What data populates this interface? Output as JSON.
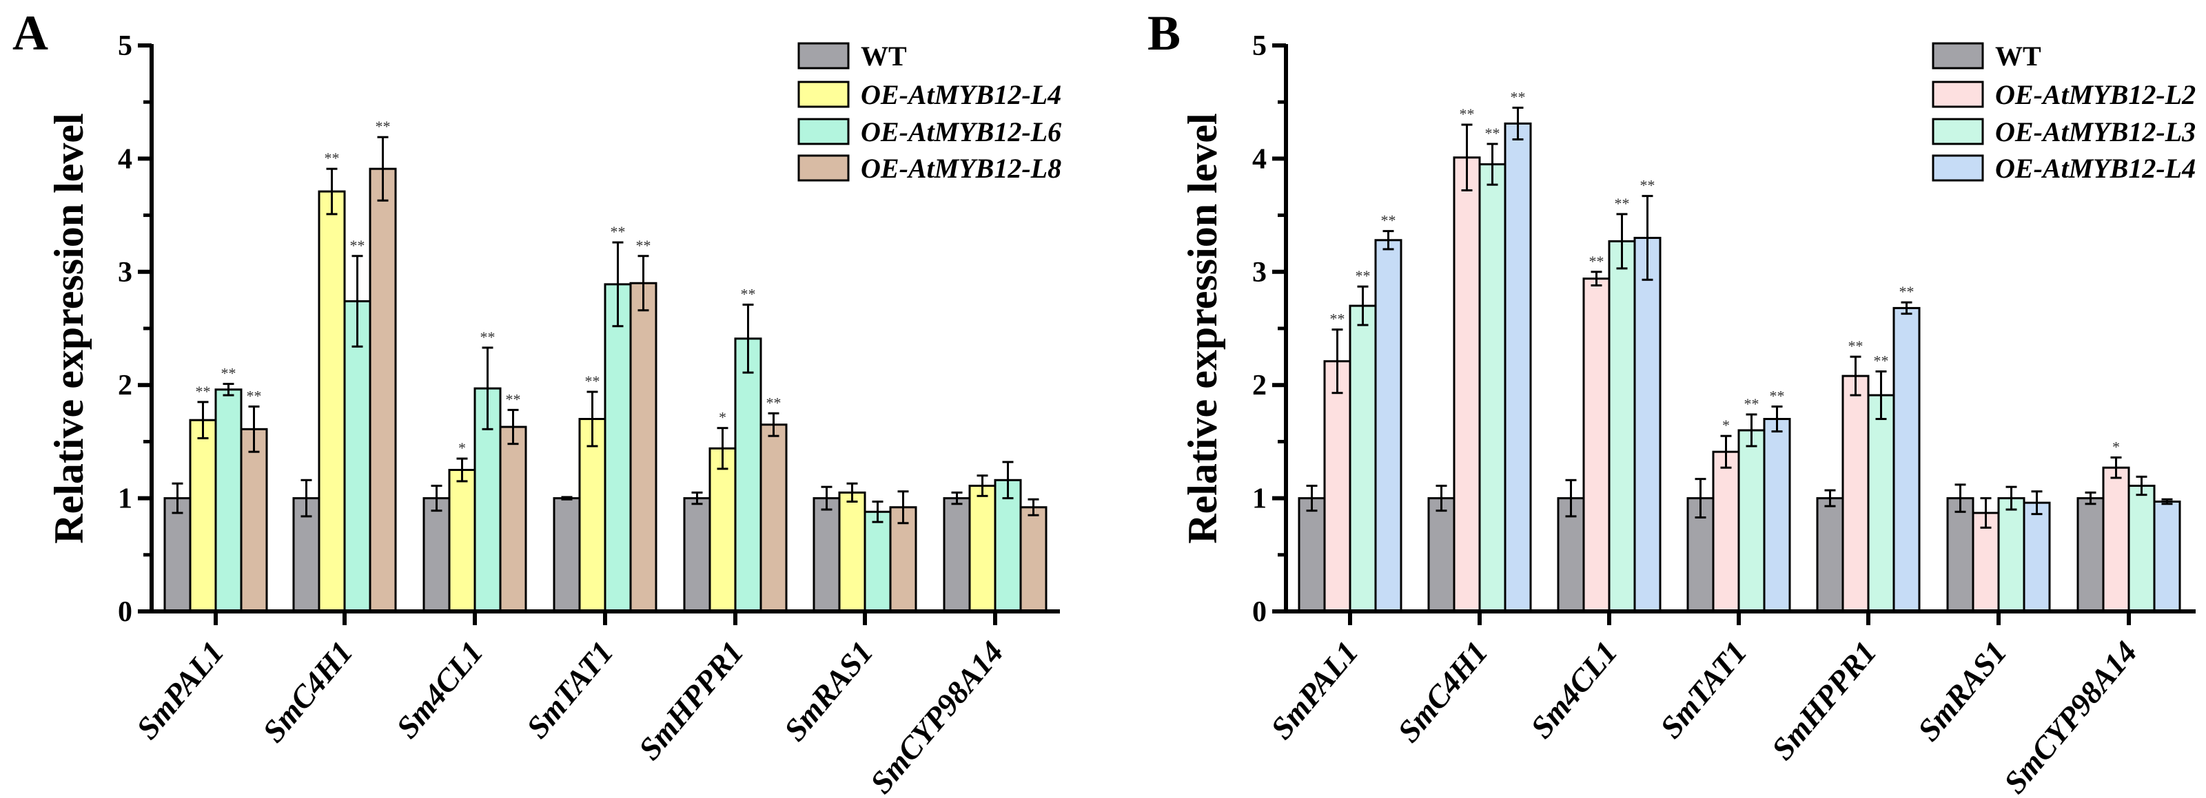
{
  "chart_data": [
    {
      "panel_label": "A",
      "type": "bar",
      "ylabel": "Relative expression level",
      "ylim": [
        0,
        5
      ],
      "yticks": [
        "0",
        "1",
        "2",
        "3",
        "4",
        "5"
      ],
      "legend_position": "top-right",
      "categories": [
        "SmPAL1",
        "SmC4H1",
        "Sm4CL1",
        "SmTAT1",
        "SmHPPR1",
        "SmRAS1",
        "SmCYP98A14"
      ],
      "series": [
        {
          "name": "WT",
          "color": "#a3a3a8",
          "values": [
            1.0,
            1.0,
            1.0,
            1.0,
            1.0,
            1.0,
            1.0
          ],
          "errors": [
            0.13,
            0.16,
            0.11,
            0.01,
            0.05,
            0.1,
            0.05
          ],
          "sig": [
            "",
            "",
            "",
            "",
            "",
            "",
            ""
          ]
        },
        {
          "name": "OE-AtMYB12-L4",
          "color": "#ffff99",
          "values": [
            1.69,
            3.71,
            1.25,
            1.7,
            1.44,
            1.05,
            1.11
          ],
          "errors": [
            0.16,
            0.2,
            0.1,
            0.24,
            0.18,
            0.08,
            0.09
          ],
          "sig": [
            "**",
            "**",
            "*",
            "**",
            "*",
            "",
            ""
          ]
        },
        {
          "name": "OE-AtMYB12-L6",
          "color": "#b3f5de",
          "values": [
            1.96,
            2.74,
            1.97,
            2.89,
            2.41,
            0.88,
            1.16
          ],
          "errors": [
            0.05,
            0.4,
            0.36,
            0.37,
            0.3,
            0.09,
            0.16
          ],
          "sig": [
            "**",
            "**",
            "**",
            "**",
            "**",
            "",
            ""
          ]
        },
        {
          "name": "OE-AtMYB12-L8",
          "color": "#d8bba4",
          "values": [
            1.61,
            3.91,
            1.63,
            2.9,
            1.65,
            0.92,
            0.92
          ],
          "errors": [
            0.2,
            0.28,
            0.15,
            0.24,
            0.1,
            0.14,
            0.07
          ],
          "sig": [
            "**",
            "**",
            "**",
            "**",
            "**",
            "",
            ""
          ]
        }
      ]
    },
    {
      "panel_label": "B",
      "type": "bar",
      "ylabel": "Relative expression level",
      "ylim": [
        0,
        5
      ],
      "yticks": [
        "0",
        "1",
        "2",
        "3",
        "4",
        "5"
      ],
      "legend_position": "top-right",
      "categories": [
        "SmPAL1",
        "SmC4H1",
        "Sm4CL1",
        "SmTAT1",
        "SmHPPR1",
        "SmRAS1",
        "SmCYP98A14"
      ],
      "series": [
        {
          "name": "WT",
          "color": "#a3a3a8",
          "values": [
            1.0,
            1.0,
            1.0,
            1.0,
            1.0,
            1.0,
            1.0
          ],
          "errors": [
            0.11,
            0.11,
            0.16,
            0.17,
            0.07,
            0.12,
            0.05
          ],
          "sig": [
            "",
            "",
            "",
            "",
            "",
            "",
            ""
          ]
        },
        {
          "name": "OE-AtMYB12-L2",
          "color": "#fde0e0",
          "values": [
            2.21,
            4.01,
            2.94,
            1.41,
            2.08,
            0.87,
            1.27
          ],
          "errors": [
            0.28,
            0.29,
            0.06,
            0.14,
            0.17,
            0.13,
            0.09
          ],
          "sig": [
            "**",
            "**",
            "**",
            "*",
            "**",
            "",
            "*"
          ]
        },
        {
          "name": "OE-AtMYB12-L3",
          "color": "#c9f7e5",
          "values": [
            2.7,
            3.95,
            3.27,
            1.6,
            1.91,
            1.0,
            1.11
          ],
          "errors": [
            0.17,
            0.18,
            0.24,
            0.14,
            0.21,
            0.1,
            0.08
          ],
          "sig": [
            "**",
            "**",
            "**",
            "**",
            "**",
            "",
            ""
          ]
        },
        {
          "name": "OE-AtMYB12-L4",
          "color": "#c6dcf6",
          "values": [
            3.28,
            4.31,
            3.3,
            1.7,
            2.68,
            0.96,
            0.97
          ],
          "errors": [
            0.08,
            0.14,
            0.37,
            0.11,
            0.05,
            0.1,
            0.02
          ],
          "sig": [
            "**",
            "**",
            "**",
            "**",
            "**",
            "",
            ""
          ]
        }
      ]
    }
  ]
}
